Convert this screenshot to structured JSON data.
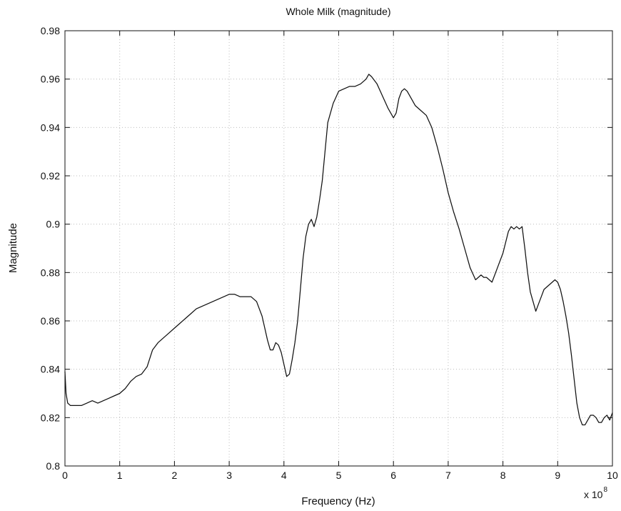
{
  "chart_data": {
    "type": "line",
    "title": "Whole Milk (magnitude)",
    "xlabel": "Frequency (Hz)",
    "ylabel": "Magnitude",
    "x_multiplier_base": "x 10",
    "x_multiplier_exponent": "8",
    "xlim": [
      0,
      10
    ],
    "ylim": [
      0.8,
      0.98
    ],
    "x_ticks": [
      "0",
      "1",
      "2",
      "3",
      "4",
      "5",
      "6",
      "7",
      "8",
      "9",
      "10"
    ],
    "y_ticks": [
      "0.8",
      "0.82",
      "0.84",
      "0.86",
      "0.88",
      "0.9",
      "0.92",
      "0.94",
      "0.96",
      "0.98"
    ],
    "grid": true,
    "line_color": "#111111",
    "grid_color": "#bdbdbd",
    "series": [
      {
        "x": [
          0.0,
          0.02,
          0.05,
          0.1,
          0.2,
          0.3,
          0.4,
          0.5,
          0.6,
          0.7,
          0.8,
          0.9,
          1.0,
          1.1,
          1.2,
          1.3,
          1.4,
          1.5,
          1.6,
          1.7,
          1.8,
          1.9,
          2.0,
          2.1,
          2.2,
          2.3,
          2.4,
          2.5,
          2.6,
          2.7,
          2.8,
          2.9,
          3.0,
          3.1,
          3.2,
          3.3,
          3.4,
          3.5,
          3.6,
          3.65,
          3.7,
          3.75,
          3.8,
          3.85,
          3.9,
          3.95,
          4.0,
          4.05,
          4.1,
          4.15,
          4.2,
          4.25,
          4.3,
          4.35,
          4.4,
          4.45,
          4.5,
          4.55,
          4.6,
          4.65,
          4.7,
          4.75,
          4.8,
          4.9,
          5.0,
          5.1,
          5.2,
          5.3,
          5.4,
          5.5,
          5.55,
          5.6,
          5.7,
          5.8,
          5.9,
          6.0,
          6.05,
          6.1,
          6.15,
          6.2,
          6.25,
          6.3,
          6.4,
          6.5,
          6.6,
          6.7,
          6.8,
          6.9,
          7.0,
          7.1,
          7.2,
          7.3,
          7.4,
          7.5,
          7.6,
          7.65,
          7.7,
          7.8,
          7.9,
          8.0,
          8.1,
          8.15,
          8.2,
          8.25,
          8.3,
          8.35,
          8.4,
          8.45,
          8.5,
          8.55,
          8.6,
          8.65,
          8.7,
          8.75,
          8.8,
          8.85,
          8.9,
          8.95,
          9.0,
          9.05,
          9.1,
          9.15,
          9.2,
          9.25,
          9.3,
          9.35,
          9.4,
          9.45,
          9.5,
          9.55,
          9.6,
          9.65,
          9.7,
          9.75,
          9.8,
          9.85,
          9.9,
          9.95,
          10.0
        ],
        "y": [
          0.839,
          0.83,
          0.826,
          0.825,
          0.825,
          0.825,
          0.826,
          0.827,
          0.826,
          0.827,
          0.828,
          0.829,
          0.83,
          0.832,
          0.835,
          0.837,
          0.838,
          0.841,
          0.848,
          0.851,
          0.853,
          0.855,
          0.857,
          0.859,
          0.861,
          0.863,
          0.865,
          0.866,
          0.867,
          0.868,
          0.869,
          0.87,
          0.871,
          0.871,
          0.87,
          0.87,
          0.87,
          0.868,
          0.862,
          0.857,
          0.852,
          0.848,
          0.848,
          0.851,
          0.85,
          0.847,
          0.842,
          0.837,
          0.838,
          0.844,
          0.851,
          0.86,
          0.873,
          0.886,
          0.895,
          0.9,
          0.902,
          0.899,
          0.903,
          0.91,
          0.918,
          0.93,
          0.942,
          0.95,
          0.955,
          0.956,
          0.957,
          0.957,
          0.958,
          0.96,
          0.962,
          0.961,
          0.958,
          0.953,
          0.948,
          0.944,
          0.946,
          0.952,
          0.955,
          0.956,
          0.955,
          0.953,
          0.949,
          0.947,
          0.945,
          0.94,
          0.932,
          0.923,
          0.913,
          0.905,
          0.898,
          0.89,
          0.882,
          0.877,
          0.879,
          0.878,
          0.878,
          0.876,
          0.882,
          0.888,
          0.897,
          0.899,
          0.898,
          0.899,
          0.898,
          0.899,
          0.89,
          0.88,
          0.872,
          0.868,
          0.864,
          0.867,
          0.87,
          0.873,
          0.874,
          0.875,
          0.876,
          0.877,
          0.876,
          0.873,
          0.868,
          0.862,
          0.855,
          0.846,
          0.836,
          0.826,
          0.82,
          0.817,
          0.817,
          0.819,
          0.821,
          0.821,
          0.82,
          0.818,
          0.818,
          0.82,
          0.821,
          0.819,
          0.822
        ]
      }
    ]
  }
}
